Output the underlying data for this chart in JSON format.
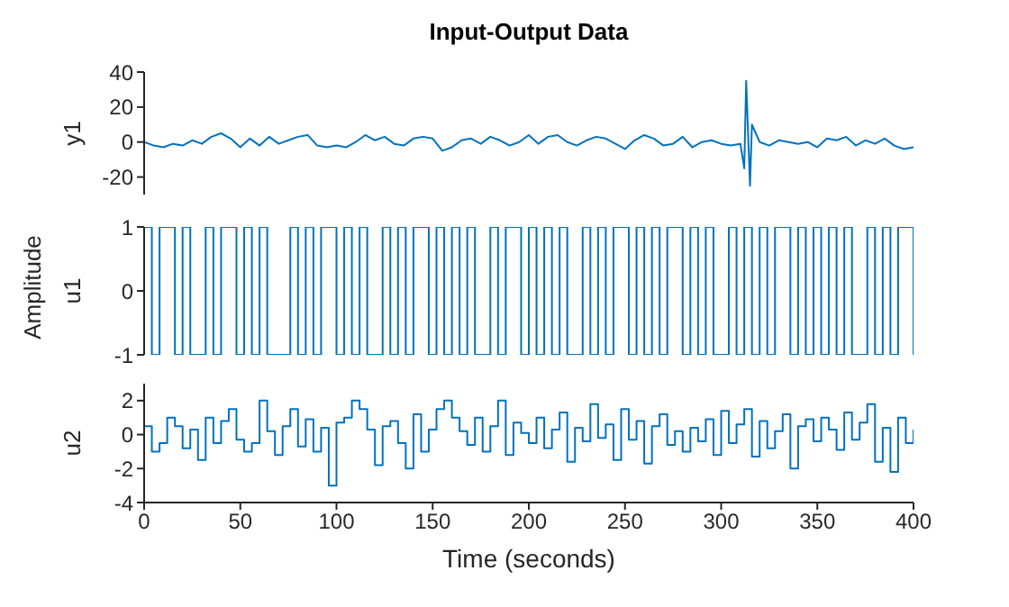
{
  "chart_data": [
    {
      "type": "line",
      "title": "Input-Output Data",
      "ylabel": "y1",
      "color": "#0072bd",
      "xlim": [
        0,
        400
      ],
      "xticks": [
        0,
        50,
        100,
        150,
        200,
        250,
        300,
        350,
        400
      ],
      "ylim": [
        -30,
        40
      ],
      "yticks": [
        -20,
        0,
        20,
        40
      ],
      "tick_labels": "y",
      "x": [
        0,
        5,
        10,
        15,
        20,
        25,
        30,
        35,
        40,
        45,
        50,
        55,
        60,
        65,
        70,
        75,
        80,
        85,
        90,
        95,
        100,
        105,
        110,
        115,
        120,
        125,
        130,
        135,
        140,
        145,
        150,
        155,
        160,
        165,
        170,
        175,
        180,
        185,
        190,
        195,
        200,
        205,
        210,
        215,
        220,
        225,
        230,
        235,
        240,
        245,
        250,
        255,
        260,
        265,
        270,
        275,
        280,
        285,
        290,
        295,
        300,
        305,
        310,
        312,
        313,
        314,
        315,
        316,
        318,
        320,
        325,
        330,
        335,
        340,
        345,
        350,
        355,
        360,
        365,
        370,
        375,
        380,
        385,
        390,
        395,
        400
      ],
      "values": [
        0,
        -2,
        -3,
        -1,
        -2,
        1,
        -1,
        3,
        5,
        2,
        -3,
        2,
        -2,
        3,
        -1,
        1,
        3,
        4,
        -2,
        -3,
        -2,
        -3,
        0,
        4,
        1,
        3,
        -1,
        -2,
        2,
        3,
        2,
        -5,
        -3,
        1,
        2,
        -1,
        3,
        1,
        -2,
        0,
        4,
        -1,
        3,
        4,
        0,
        -2,
        1,
        3,
        2,
        -1,
        -4,
        1,
        4,
        2,
        -2,
        -1,
        3,
        -3,
        0,
        1,
        -1,
        -2,
        -1,
        -15,
        35,
        5,
        -25,
        10,
        5,
        0,
        -2,
        1,
        0,
        -1,
        0,
        -3,
        2,
        1,
        3,
        -2,
        1,
        -1,
        2,
        -2,
        -4,
        -3
      ]
    },
    {
      "type": "step",
      "ylabel": "u1",
      "annotations": [
        "Amplitude"
      ],
      "color": "#0072bd",
      "xlim": [
        0,
        400
      ],
      "xticks": [
        0,
        50,
        100,
        150,
        200,
        250,
        300,
        350,
        400
      ],
      "ylim": [
        -1,
        1
      ],
      "yticks": [
        -1,
        0,
        1
      ],
      "tick_labels": "y",
      "x": [
        0,
        4,
        8,
        12,
        16,
        20,
        24,
        28,
        32,
        36,
        40,
        44,
        48,
        52,
        56,
        60,
        64,
        68,
        72,
        76,
        80,
        84,
        88,
        92,
        96,
        100,
        104,
        108,
        112,
        116,
        120,
        124,
        128,
        132,
        136,
        140,
        144,
        148,
        152,
        156,
        160,
        164,
        168,
        172,
        176,
        180,
        184,
        188,
        192,
        196,
        200,
        204,
        208,
        212,
        216,
        220,
        224,
        228,
        232,
        236,
        240,
        244,
        248,
        252,
        256,
        260,
        264,
        268,
        272,
        276,
        280,
        284,
        288,
        292,
        296,
        300,
        304,
        308,
        312,
        316,
        320,
        324,
        328,
        332,
        336,
        340,
        344,
        348,
        352,
        356,
        360,
        364,
        368,
        372,
        376,
        380,
        384,
        388,
        392,
        396,
        400
      ],
      "values": [
        1,
        -1,
        1,
        1,
        -1,
        1,
        -1,
        -1,
        1,
        -1,
        1,
        1,
        -1,
        1,
        -1,
        1,
        -1,
        -1,
        -1,
        1,
        -1,
        1,
        -1,
        1,
        1,
        -1,
        1,
        -1,
        1,
        -1,
        -1,
        1,
        -1,
        1,
        -1,
        1,
        1,
        -1,
        1,
        -1,
        1,
        -1,
        1,
        -1,
        -1,
        1,
        -1,
        1,
        1,
        -1,
        1,
        -1,
        1,
        -1,
        1,
        -1,
        -1,
        1,
        -1,
        1,
        -1,
        1,
        1,
        -1,
        1,
        -1,
        1,
        -1,
        1,
        1,
        -1,
        1,
        -1,
        1,
        -1,
        -1,
        1,
        -1,
        1,
        -1,
        1,
        -1,
        1,
        1,
        -1,
        1,
        -1,
        1,
        -1,
        1,
        -1,
        1,
        -1,
        -1,
        1,
        -1,
        1,
        -1,
        1,
        1,
        -1
      ]
    },
    {
      "type": "step",
      "ylabel": "u2",
      "xlabel": "Time (seconds)",
      "color": "#0072bd",
      "xlim": [
        0,
        400
      ],
      "xticks": [
        0,
        50,
        100,
        150,
        200,
        250,
        300,
        350,
        400
      ],
      "ylim": [
        -4,
        3
      ],
      "yticks": [
        -4,
        -2,
        0,
        2
      ],
      "x": [
        0,
        4,
        8,
        12,
        16,
        20,
        24,
        28,
        32,
        36,
        40,
        44,
        48,
        52,
        56,
        60,
        64,
        68,
        72,
        76,
        80,
        84,
        88,
        92,
        96,
        100,
        104,
        108,
        112,
        116,
        120,
        124,
        128,
        132,
        136,
        140,
        144,
        148,
        152,
        156,
        160,
        164,
        168,
        172,
        176,
        180,
        184,
        188,
        192,
        196,
        200,
        204,
        208,
        212,
        216,
        220,
        224,
        228,
        232,
        236,
        240,
        244,
        248,
        252,
        256,
        260,
        264,
        268,
        272,
        276,
        280,
        284,
        288,
        292,
        296,
        300,
        304,
        308,
        312,
        316,
        320,
        324,
        328,
        332,
        336,
        340,
        344,
        348,
        352,
        356,
        360,
        364,
        368,
        372,
        376,
        380,
        384,
        388,
        392,
        396,
        400
      ],
      "values": [
        0.5,
        -1,
        -0.5,
        1,
        0.5,
        -0.8,
        0.3,
        -1.5,
        1,
        -0.5,
        0.8,
        1.5,
        -0.3,
        -1,
        -0.5,
        2,
        0.2,
        -1.2,
        0.5,
        1.5,
        -0.7,
        0.9,
        -1,
        0.4,
        -3,
        0.7,
        1,
        2,
        1.5,
        0.3,
        -1.8,
        0.5,
        0.8,
        -0.5,
        -2,
        1.2,
        -1,
        0.3,
        1.5,
        2,
        1,
        0.2,
        -0.6,
        1,
        -1,
        0.5,
        2,
        -1.2,
        0.7,
        0.1,
        -0.5,
        1,
        -0.8,
        0.3,
        1.3,
        -1.6,
        0.4,
        -0.4,
        1.8,
        -0.2,
        0.6,
        -1.5,
        1.5,
        -0.3,
        0.8,
        -1.7,
        0.5,
        1.2,
        -0.6,
        0.2,
        -1,
        0.4,
        -0.4,
        0.9,
        -1.2,
        1.4,
        -0.5,
        0.6,
        1.5,
        -1.3,
        0.8,
        -0.8,
        0.2,
        1.2,
        -2,
        0.5,
        0.9,
        -0.4,
        1,
        0.3,
        -0.9,
        1.3,
        -0.3,
        0.7,
        1.8,
        -1.6,
        0.4,
        -2.2,
        1,
        -0.5,
        0.3
      ]
    }
  ]
}
